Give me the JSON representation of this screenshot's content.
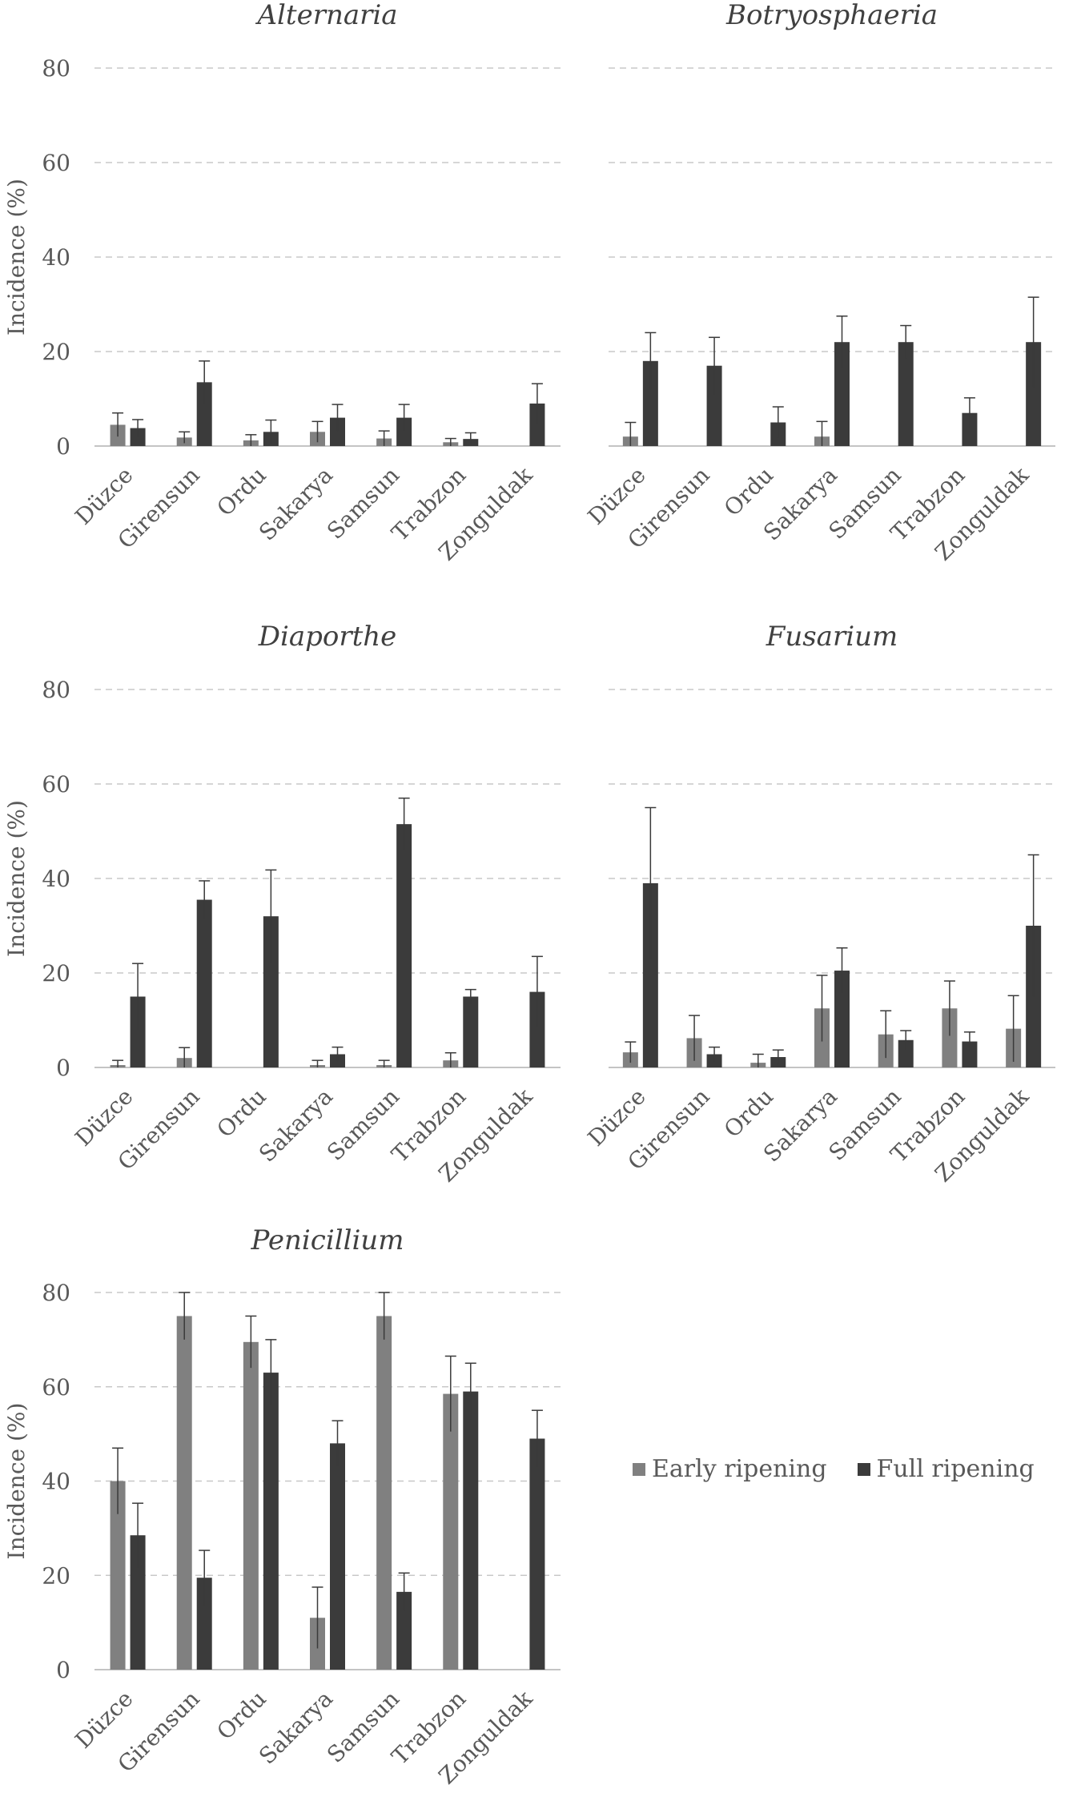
{
  "figure": {
    "legend": "bottom-right"
  },
  "colors": {
    "early": "#808080",
    "full": "#3b3b3b",
    "grid": "#c8c8c8",
    "text": "#595959",
    "errorbar": "#3a3a3a"
  },
  "legend": {
    "items": [
      {
        "label": "Early ripening",
        "color": "#808080"
      },
      {
        "label": "Full ripening",
        "color": "#3b3b3b"
      }
    ]
  },
  "chart_data": [
    {
      "type": "bar",
      "title": "Alternaria",
      "ylabel": "Incidence (%)",
      "xlabel": "",
      "ylim": [
        0,
        80
      ],
      "yticks": [
        0,
        20,
        40,
        60,
        80
      ],
      "grid": true,
      "show_ylabel": true,
      "show_yticks": true,
      "categories": [
        "Düzce",
        "Girensun",
        "Ordu",
        "Sakarya",
        "Samsun",
        "Trabzon",
        "Zonguldak"
      ],
      "series": [
        {
          "name": "Early ripening",
          "values": [
            4.5,
            1.8,
            1.2,
            3.0,
            1.6,
            0.8,
            null
          ],
          "errors": [
            2.5,
            1.2,
            1.2,
            2.2,
            1.6,
            0.8,
            null
          ]
        },
        {
          "name": "Full ripening",
          "values": [
            3.8,
            13.5,
            3.0,
            6.0,
            6.0,
            1.5,
            9.0
          ],
          "errors": [
            1.8,
            4.5,
            2.5,
            2.8,
            2.8,
            1.3,
            4.2
          ]
        }
      ]
    },
    {
      "type": "bar",
      "title": "Botryosphaeria",
      "ylabel": "",
      "xlabel": "",
      "ylim": [
        0,
        80
      ],
      "yticks": [
        0,
        20,
        40,
        60,
        80
      ],
      "grid": true,
      "show_ylabel": false,
      "show_yticks": false,
      "categories": [
        "Düzce",
        "Girensun",
        "Ordu",
        "Sakarya",
        "Samsun",
        "Trabzon",
        "Zonguldak"
      ],
      "series": [
        {
          "name": "Early ripening",
          "values": [
            2.0,
            null,
            null,
            2.0,
            null,
            null,
            null
          ],
          "errors": [
            3.0,
            null,
            null,
            3.2,
            null,
            null,
            null
          ]
        },
        {
          "name": "Full ripening",
          "values": [
            18.0,
            17.0,
            5.0,
            22.0,
            22.0,
            7.0,
            22.0
          ],
          "errors": [
            6.0,
            6.0,
            3.3,
            5.5,
            3.5,
            3.2,
            9.5
          ]
        }
      ]
    },
    {
      "type": "bar",
      "title": "Diaporthe",
      "ylabel": "Incidence (%)",
      "xlabel": "",
      "ylim": [
        0,
        80
      ],
      "yticks": [
        0,
        20,
        40,
        60,
        80
      ],
      "grid": true,
      "show_ylabel": true,
      "show_yticks": true,
      "categories": [
        "Düzce",
        "Girensun",
        "Ordu",
        "Sakarya",
        "Samsun",
        "Trabzon",
        "Zonguldak"
      ],
      "series": [
        {
          "name": "Early ripening",
          "values": [
            0.5,
            2.0,
            null,
            0.5,
            0.5,
            1.5,
            null
          ],
          "errors": [
            1.0,
            2.2,
            null,
            1.0,
            1.0,
            1.6,
            null
          ]
        },
        {
          "name": "Full ripening",
          "values": [
            15.0,
            35.5,
            32.0,
            2.8,
            51.5,
            15.0,
            16.0
          ],
          "errors": [
            7.0,
            4.0,
            9.8,
            1.5,
            5.5,
            1.5,
            7.5
          ]
        }
      ]
    },
    {
      "type": "bar",
      "title": "Fusarium",
      "ylabel": "",
      "xlabel": "",
      "ylim": [
        0,
        80
      ],
      "yticks": [
        0,
        20,
        40,
        60,
        80
      ],
      "grid": true,
      "show_ylabel": false,
      "show_yticks": false,
      "categories": [
        "Düzce",
        "Girensun",
        "Ordu",
        "Sakarya",
        "Samsun",
        "Trabzon",
        "Zonguldak"
      ],
      "series": [
        {
          "name": "Early ripening",
          "values": [
            3.2,
            6.2,
            1.0,
            12.5,
            7.0,
            12.5,
            8.2
          ],
          "errors": [
            2.2,
            4.8,
            1.8,
            7.0,
            5.0,
            5.8,
            7.0
          ]
        },
        {
          "name": "Full ripening",
          "values": [
            39.0,
            2.8,
            2.2,
            20.5,
            5.8,
            5.5,
            30.0
          ],
          "errors": [
            16.0,
            1.5,
            1.5,
            4.8,
            2.0,
            2.0,
            15.0
          ]
        }
      ]
    },
    {
      "type": "bar",
      "title": "Penicillium",
      "ylabel": "Incidence (%)",
      "xlabel": "",
      "ylim": [
        0,
        80
      ],
      "yticks": [
        0,
        20,
        40,
        60,
        80
      ],
      "grid": true,
      "show_ylabel": true,
      "show_yticks": true,
      "categories": [
        "Düzce",
        "Girensun",
        "Ordu",
        "Sakarya",
        "Samsun",
        "Trabzon",
        "Zonguldak"
      ],
      "series": [
        {
          "name": "Early ripening",
          "values": [
            40.0,
            75.0,
            69.5,
            11.0,
            75.0,
            58.5,
            null
          ],
          "errors": [
            7.0,
            5.0,
            5.5,
            6.5,
            5.0,
            8.0,
            null
          ]
        },
        {
          "name": "Full ripening",
          "values": [
            28.5,
            19.5,
            63.0,
            48.0,
            16.5,
            59.0,
            49.0
          ],
          "errors": [
            6.8,
            5.8,
            7.0,
            4.8,
            4.0,
            6.0,
            6.0
          ]
        }
      ]
    }
  ]
}
